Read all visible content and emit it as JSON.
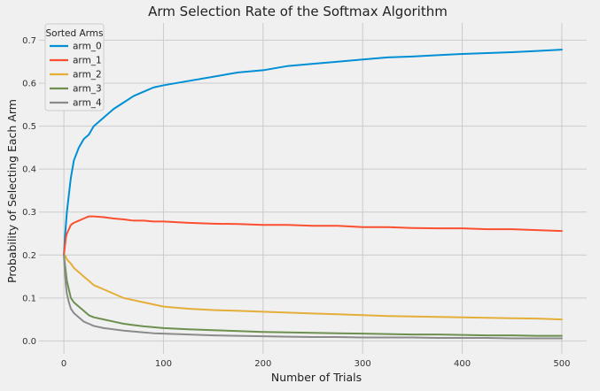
{
  "chart_data": {
    "type": "line",
    "title": "Arm Selection Rate of the Softmax Algorithm",
    "xlabel": "Number of Trials",
    "ylabel": "Probability of Selecting Each Arm",
    "xlim": [
      -25,
      525
    ],
    "ylim": [
      -0.03,
      0.74
    ],
    "xticks": [
      0,
      100,
      200,
      300,
      400,
      500
    ],
    "yticks": [
      0.0,
      0.1,
      0.2,
      0.3,
      0.4,
      0.5,
      0.6,
      0.7
    ],
    "grid": true,
    "legend": {
      "title": "Sorted Arms",
      "placement": "top-left"
    },
    "x": [
      0,
      1,
      2,
      3,
      5,
      7,
      10,
      15,
      20,
      25,
      30,
      40,
      50,
      60,
      70,
      80,
      90,
      100,
      125,
      150,
      175,
      200,
      225,
      250,
      275,
      300,
      325,
      350,
      375,
      400,
      425,
      450,
      475,
      500
    ],
    "series": [
      {
        "name": "arm_0",
        "color": "#008fd5",
        "values": [
          0.2,
          0.24,
          0.27,
          0.3,
          0.34,
          0.38,
          0.42,
          0.45,
          0.47,
          0.48,
          0.5,
          0.52,
          0.54,
          0.555,
          0.57,
          0.58,
          0.59,
          0.595,
          0.605,
          0.615,
          0.625,
          0.63,
          0.64,
          0.645,
          0.65,
          0.655,
          0.66,
          0.662,
          0.665,
          0.668,
          0.67,
          0.672,
          0.675,
          0.678
        ]
      },
      {
        "name": "arm_1",
        "color": "#fc4f30",
        "values": [
          0.2,
          0.22,
          0.24,
          0.25,
          0.26,
          0.27,
          0.275,
          0.28,
          0.285,
          0.29,
          0.29,
          0.288,
          0.285,
          0.283,
          0.28,
          0.28,
          0.278,
          0.278,
          0.275,
          0.273,
          0.272,
          0.27,
          0.27,
          0.268,
          0.268,
          0.265,
          0.265,
          0.263,
          0.262,
          0.262,
          0.26,
          0.26,
          0.258,
          0.256
        ]
      },
      {
        "name": "arm_2",
        "color": "#e5ae38",
        "values": [
          0.2,
          0.2,
          0.195,
          0.19,
          0.185,
          0.18,
          0.17,
          0.16,
          0.15,
          0.14,
          0.13,
          0.12,
          0.11,
          0.1,
          0.095,
          0.09,
          0.085,
          0.08,
          0.075,
          0.072,
          0.07,
          0.068,
          0.066,
          0.064,
          0.062,
          0.06,
          0.058,
          0.057,
          0.056,
          0.055,
          0.054,
          0.053,
          0.052,
          0.05
        ]
      },
      {
        "name": "arm_3",
        "color": "#6d904f",
        "values": [
          0.2,
          0.18,
          0.16,
          0.14,
          0.12,
          0.1,
          0.09,
          0.08,
          0.07,
          0.06,
          0.055,
          0.05,
          0.045,
          0.04,
          0.037,
          0.034,
          0.032,
          0.03,
          0.027,
          0.025,
          0.023,
          0.021,
          0.02,
          0.019,
          0.018,
          0.017,
          0.016,
          0.015,
          0.015,
          0.014,
          0.013,
          0.013,
          0.012,
          0.012
        ]
      },
      {
        "name": "arm_4",
        "color": "#8b8b8b",
        "values": [
          0.2,
          0.16,
          0.13,
          0.11,
          0.09,
          0.075,
          0.065,
          0.055,
          0.045,
          0.04,
          0.035,
          0.03,
          0.027,
          0.024,
          0.022,
          0.02,
          0.018,
          0.017,
          0.015,
          0.013,
          0.012,
          0.011,
          0.01,
          0.009,
          0.009,
          0.008,
          0.008,
          0.008,
          0.007,
          0.007,
          0.007,
          0.006,
          0.006,
          0.006
        ]
      }
    ]
  }
}
